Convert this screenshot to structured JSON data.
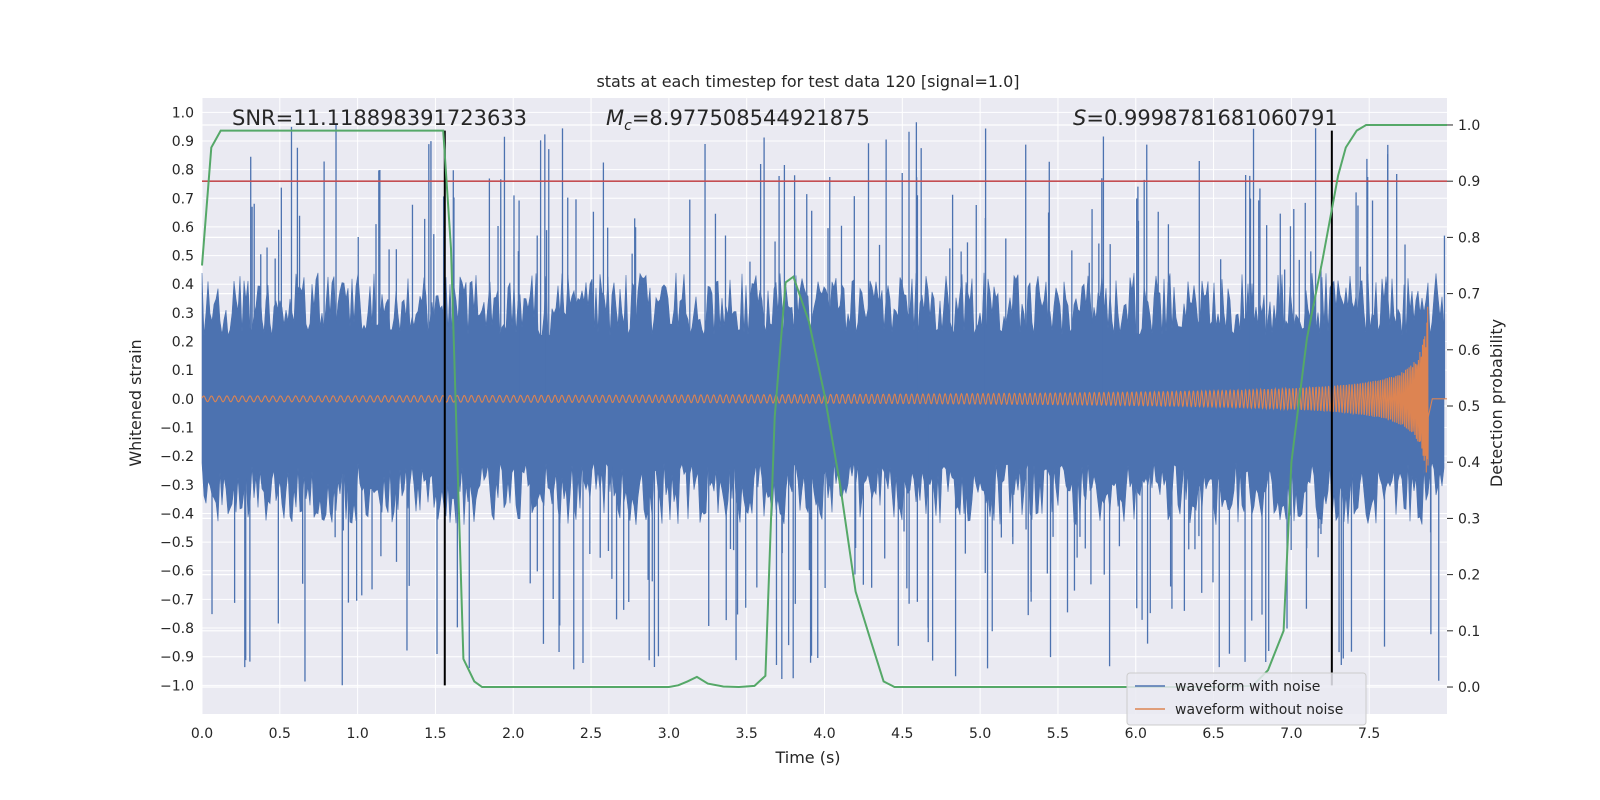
{
  "chart_data": {
    "type": "line",
    "title": "stats at each timestep for test data 120 [signal=1.0]",
    "xlabel": "Time (s)",
    "ylabel": "Whitened strain",
    "y2label": "Detection probability",
    "xlim": [
      0.0,
      8.0
    ],
    "ylim": [
      -1.1,
      1.05
    ],
    "y2lim": [
      -0.048,
      1.048
    ],
    "xticks": [
      "0.0",
      "0.5",
      "1.0",
      "1.5",
      "2.0",
      "2.5",
      "3.0",
      "3.5",
      "4.0",
      "4.5",
      "5.0",
      "5.5",
      "6.0",
      "6.5",
      "7.0",
      "7.5"
    ],
    "xtick_values": [
      0,
      0.5,
      1,
      1.5,
      2,
      2.5,
      3,
      3.5,
      4,
      4.5,
      5,
      5.5,
      6,
      6.5,
      7,
      7.5
    ],
    "yticks": [
      "1.0",
      "0.9",
      "0.8",
      "0.7",
      "0.6",
      "0.5",
      "0.4",
      "0.3",
      "0.2",
      "0.1",
      "0.0",
      "−0.1",
      "−0.2",
      "−0.3",
      "−0.4",
      "−0.5",
      "−0.6",
      "−0.7",
      "−0.8",
      "−0.9",
      "−1.0"
    ],
    "ytick_values": [
      1.0,
      0.9,
      0.8,
      0.7,
      0.6,
      0.5,
      0.4,
      0.3,
      0.2,
      0.1,
      0.0,
      -0.1,
      -0.2,
      -0.3,
      -0.4,
      -0.5,
      -0.6,
      -0.7,
      -0.8,
      -0.9,
      -1.0
    ],
    "y2ticks": [
      "1.0",
      "0.9",
      "0.8",
      "0.7",
      "0.6",
      "0.5",
      "0.4",
      "0.3",
      "0.2",
      "0.1",
      "0.0"
    ],
    "y2tick_values": [
      1.0,
      0.9,
      0.8,
      0.7,
      0.6,
      0.5,
      0.4,
      0.3,
      0.2,
      0.1,
      0.0
    ],
    "annotations": {
      "snr": "SNR=11.118898391723633",
      "mc_symbol": "M",
      "mc_subscript": "c",
      "mc_value": "=8.977508544921875",
      "s_symbol": "S",
      "s_value": "=0.9998781681060791"
    },
    "threshold_line": {
      "y2": 0.9,
      "color": "#c44e52"
    },
    "vertical_markers": [
      1.56,
      7.26
    ],
    "noise_envelope": {
      "x_end": 7.99,
      "typical_amplitude": 0.4,
      "peak_max": 0.97,
      "peak_min": -1.0,
      "peak_seed": 120
    },
    "clean_signal": {
      "x_end": 7.88,
      "start_amplitude": 0.01,
      "end_amplitude_pos": 0.38,
      "end_amplitude_neg": -0.38,
      "start_frequency": 20
    },
    "series": [
      {
        "name": "waveform with noise",
        "color": "#4c72b0"
      },
      {
        "name": "waveform without noise",
        "color": "#dd8452"
      },
      {
        "name": "detection probability",
        "axis": "right",
        "color": "#55a868",
        "x": [
          0.0,
          0.06,
          0.12,
          0.2,
          0.5,
          1.0,
          1.4,
          1.55,
          1.6,
          1.68,
          1.75,
          1.8,
          2.0,
          2.5,
          3.0,
          3.06,
          3.12,
          3.18,
          3.25,
          3.35,
          3.45,
          3.55,
          3.62,
          3.68,
          3.75,
          3.8,
          3.9,
          4.0,
          4.1,
          4.2,
          4.3,
          4.38,
          4.45,
          4.6,
          5.0,
          5.5,
          6.0,
          6.5,
          6.75,
          6.85,
          6.95,
          7.0,
          7.1,
          7.2,
          7.3,
          7.35,
          7.42,
          7.48,
          7.6,
          8.0
        ],
        "y": [
          0.75,
          0.96,
          0.99,
          0.99,
          0.99,
          0.99,
          0.99,
          0.99,
          0.78,
          0.05,
          0.01,
          0.0,
          0.0,
          0.0,
          0.0,
          0.003,
          0.01,
          0.018,
          0.006,
          0.001,
          0.0,
          0.002,
          0.02,
          0.48,
          0.72,
          0.73,
          0.65,
          0.52,
          0.36,
          0.17,
          0.08,
          0.01,
          0.0,
          0.0,
          0.0,
          0.0,
          0.0,
          0.0,
          0.002,
          0.03,
          0.1,
          0.4,
          0.62,
          0.76,
          0.91,
          0.96,
          0.99,
          1.0,
          1.0,
          1.0
        ]
      }
    ],
    "legend_position": "lower-right",
    "grid": true
  }
}
